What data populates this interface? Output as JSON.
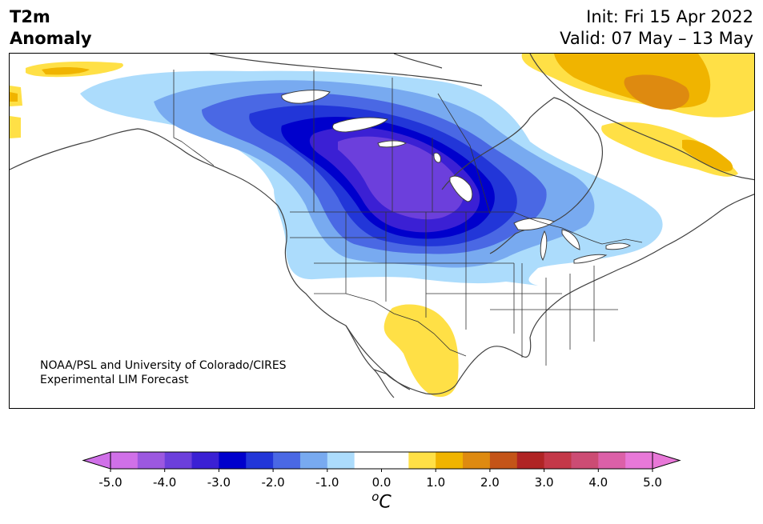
{
  "title": {
    "line1": "T2m",
    "line2": "Anomaly"
  },
  "header_right": {
    "init": "Init: Fri 15 Apr 2022",
    "valid": "Valid: 07 May – 13 May"
  },
  "credit": {
    "line1": "NOAA/PSL and University of Colorado/CIRES",
    "line2": "Experimental LIM Forecast"
  },
  "colorbar": {
    "unit_sup": "o",
    "unit": "C",
    "ticks": [
      "-5.0",
      "-4.0",
      "-3.0",
      "-2.0",
      "-1.0",
      "0.0",
      "1.0",
      "2.0",
      "3.0",
      "4.0",
      "5.0"
    ],
    "levels": [
      -5.0,
      -4.5,
      -4.0,
      -3.5,
      -3.0,
      -2.5,
      -2.0,
      -1.5,
      -1.0,
      -0.5,
      0.5,
      1.0,
      1.5,
      2.0,
      2.5,
      3.0,
      3.5,
      4.0,
      4.5,
      5.0
    ],
    "colors": [
      "#d070e8",
      "#9c58e0",
      "#6c3fdc",
      "#3b20d4",
      "#0000cc",
      "#2236d8",
      "#4a68e4",
      "#78aaf0",
      "#acdcfc",
      "#ffffff",
      "#ffe046",
      "#f0b400",
      "#de8a10",
      "#c45418",
      "#b02424",
      "#c43848",
      "#cc4c74",
      "#dc60a8",
      "#e878d8"
    ],
    "under_color": "#d070e8",
    "over_color": "#e878d8"
  },
  "colors": {
    "coast": "#404040",
    "border": "#333333"
  }
}
